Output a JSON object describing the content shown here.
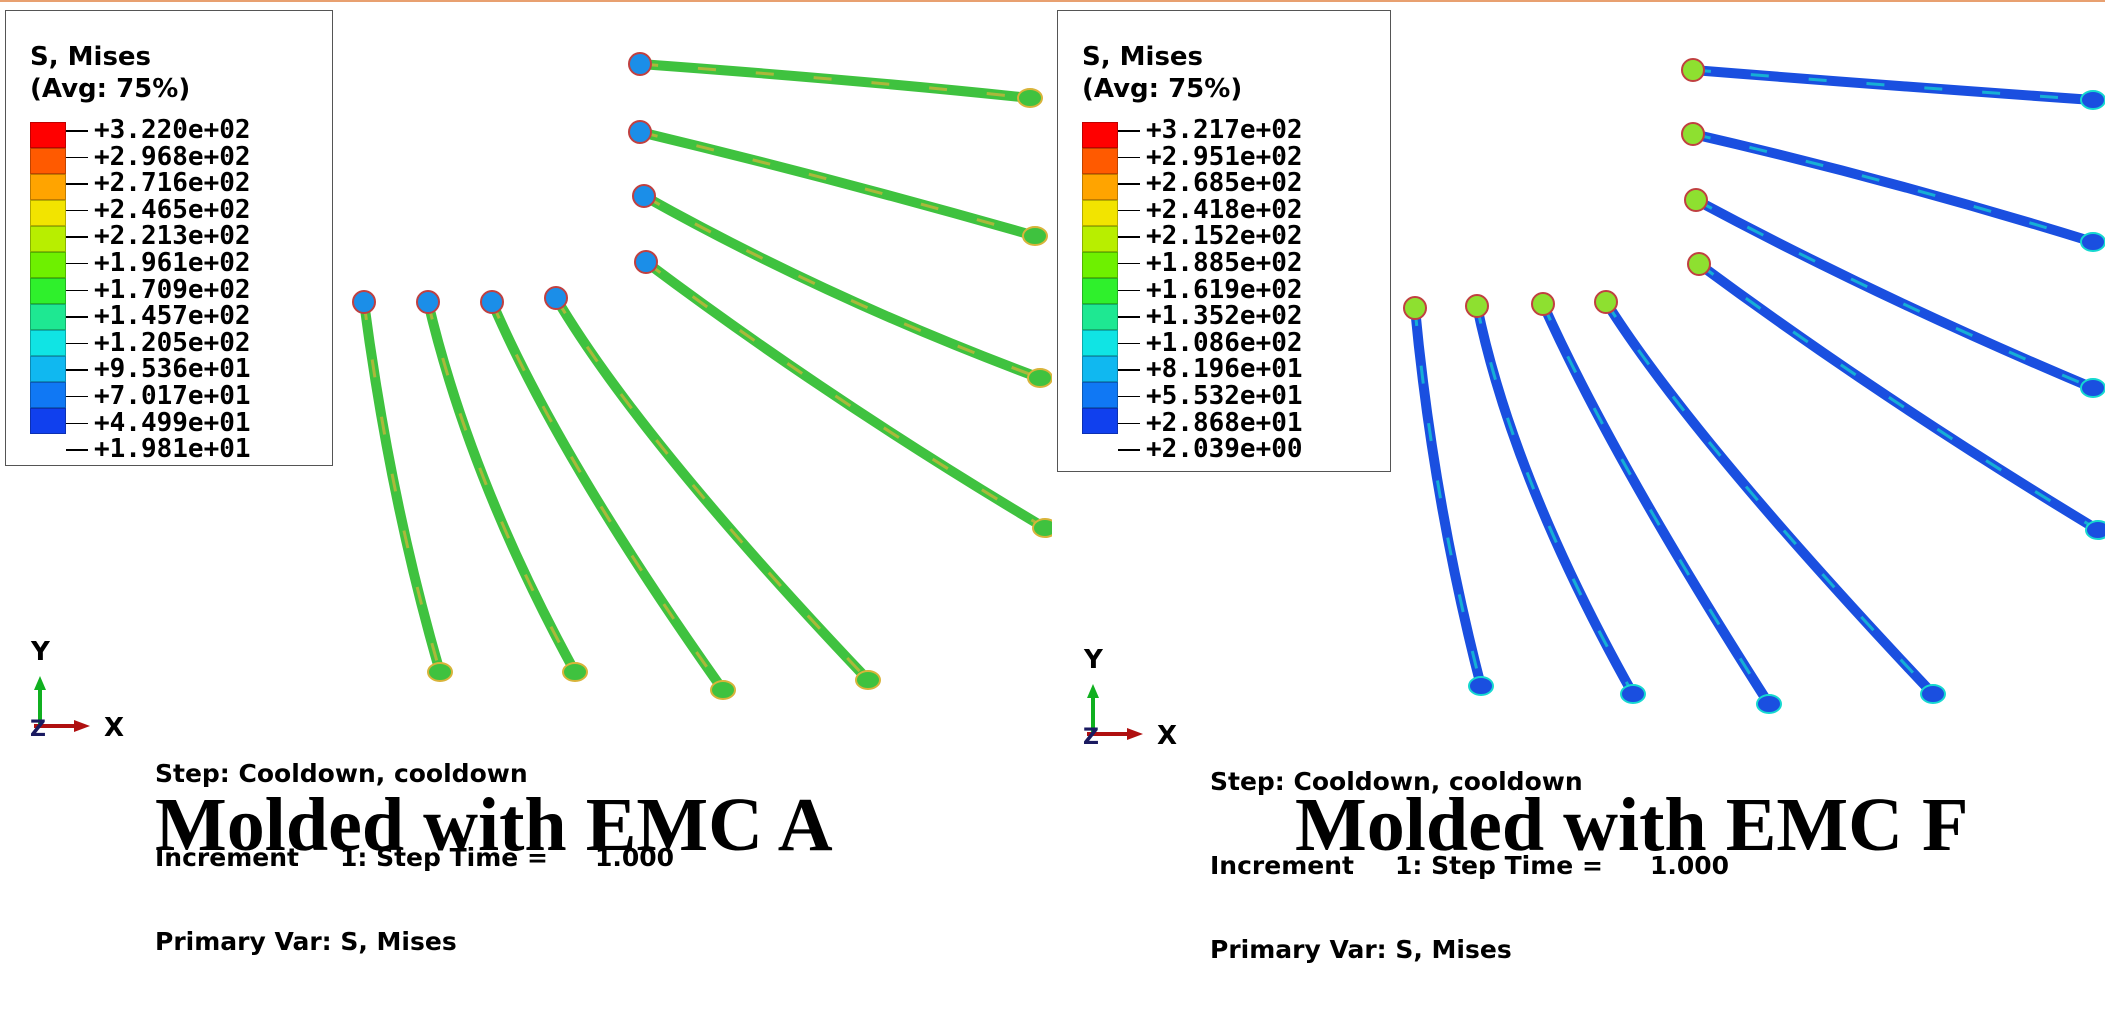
{
  "panels": [
    {
      "legend": {
        "title_line1": "S, Mises",
        "title_line2": "(Avg: 75%)",
        "values": [
          "+3.220e+02",
          "+2.968e+02",
          "+2.716e+02",
          "+2.465e+02",
          "+2.213e+02",
          "+1.961e+02",
          "+1.709e+02",
          "+1.457e+02",
          "+1.205e+02",
          "+9.536e+01",
          "+7.017e+01",
          "+4.499e+01",
          "+1.981e+01"
        ]
      },
      "triad": {
        "y": "Y",
        "x": "X",
        "z": "Z"
      },
      "step": {
        "line1": "Step: Cooldown, cooldown",
        "increment_label": "Increment",
        "increment_value": "1: Step Time =",
        "step_time": "1.000",
        "line3": "Primary Var: S, Mises"
      },
      "caption": "Molded with EMC A",
      "wire_color": "#3fc23f",
      "wire_accent": "#d8b43a"
    },
    {
      "legend": {
        "title_line1": "S, Mises",
        "title_line2": "(Avg: 75%)",
        "values": [
          "+3.217e+02",
          "+2.951e+02",
          "+2.685e+02",
          "+2.418e+02",
          "+2.152e+02",
          "+1.885e+02",
          "+1.619e+02",
          "+1.352e+02",
          "+1.086e+02",
          "+8.196e+01",
          "+5.532e+01",
          "+2.868e+01",
          "+2.039e+00"
        ]
      },
      "triad": {
        "y": "Y",
        "x": "X",
        "z": "Z"
      },
      "step": {
        "line1": "Step: Cooldown, cooldown",
        "increment_label": "Increment",
        "increment_value": "1: Step Time =",
        "step_time": "1.000",
        "line3": "Primary Var: S, Mises"
      },
      "caption": "Molded with EMC F",
      "wire_color": "#1a4fe0",
      "wire_accent": "#16d8d0"
    }
  ],
  "legend_colors": [
    "#ff0000",
    "#ff5a00",
    "#ffa400",
    "#f2e400",
    "#b8ee00",
    "#6ef000",
    "#2ff02c",
    "#1ee892",
    "#10e4e4",
    "#10b8f0",
    "#1078f4",
    "#1040ee",
    "#0000ff"
  ]
}
